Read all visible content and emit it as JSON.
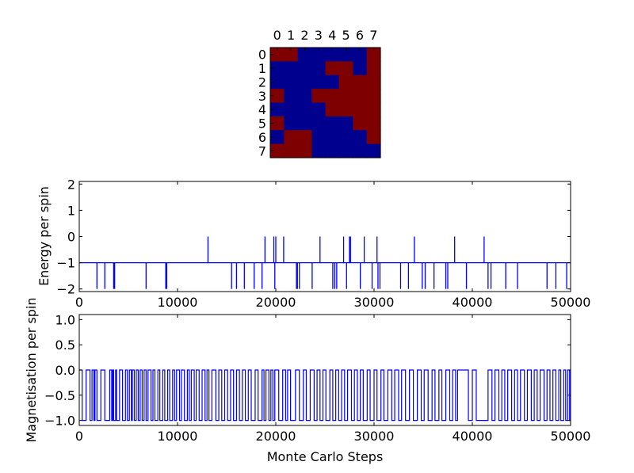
{
  "chart_data": [
    {
      "type": "heatmap",
      "title": "",
      "xticks": [
        "0",
        "1",
        "2",
        "3",
        "4",
        "5",
        "6",
        "7"
      ],
      "yticks": [
        "0",
        "1",
        "2",
        "3",
        "4",
        "5",
        "6",
        "7"
      ],
      "colors": {
        "up": "#7f0000",
        "down": "#00008f"
      },
      "grid": [
        [
          1,
          1,
          0,
          0,
          0,
          0,
          0,
          1
        ],
        [
          0,
          0,
          0,
          0,
          1,
          1,
          0,
          1
        ],
        [
          0,
          0,
          0,
          0,
          0,
          1,
          1,
          1
        ],
        [
          1,
          0,
          0,
          1,
          1,
          1,
          1,
          1
        ],
        [
          0,
          0,
          0,
          0,
          1,
          1,
          1,
          1
        ],
        [
          1,
          0,
          0,
          0,
          0,
          0,
          1,
          1
        ],
        [
          0,
          1,
          1,
          0,
          0,
          0,
          0,
          1
        ],
        [
          1,
          1,
          1,
          0,
          0,
          0,
          0,
          0
        ]
      ]
    },
    {
      "type": "line",
      "xlabel": "",
      "ylabel": "Energy per spin",
      "xlim": [
        0,
        50000
      ],
      "ylim": [
        -2.1,
        2.1
      ],
      "yticks": [
        -2,
        -1,
        0,
        1,
        2
      ],
      "xticks": [
        0,
        10000,
        20000,
        30000,
        40000,
        50000
      ],
      "baseline": -1,
      "color": "#0000ff",
      "series": [
        {
          "name": "energy-up-spikes",
          "value": 0,
          "x": [
            13100,
            18900,
            19800,
            20000,
            20800,
            24500,
            26900,
            27500,
            27600,
            29000,
            30300,
            34100,
            38200,
            41200
          ]
        },
        {
          "name": "energy-down-spikes",
          "value": -2,
          "x": [
            1800,
            2600,
            3500,
            3600,
            6800,
            8800,
            8900,
            15500,
            16000,
            16800,
            17800,
            18600,
            19900,
            22100,
            22200,
            22400,
            23700,
            25800,
            26000,
            26200,
            27200,
            28600,
            29800,
            30400,
            30600,
            32700,
            33500,
            34900,
            35200,
            36100,
            37300,
            37500,
            39400,
            41600,
            41900,
            43400,
            44600,
            47600,
            48500,
            49600
          ]
        }
      ]
    },
    {
      "type": "line",
      "xlabel": "Monte Carlo Steps",
      "ylabel": "Magnetisation per spin",
      "xlim": [
        0,
        50000
      ],
      "ylim": [
        -1.1,
        1.1
      ],
      "yticks": [
        -1.0,
        -0.5,
        0.0,
        0.5,
        1.0
      ],
      "ytick_labels": [
        "−1.0",
        "−0.5",
        "0.0",
        "0.5",
        "1.0"
      ],
      "xticks": [
        0,
        10000,
        20000,
        30000,
        40000,
        50000
      ],
      "color": "#0000ff",
      "series": [
        {
          "name": "magnetisation",
          "levels": [
            0.0,
            -1.0
          ],
          "switch_x": [
            300,
            700,
            1100,
            1300,
            1500,
            1600,
            1800,
            2200,
            2600,
            3100,
            3300,
            3400,
            3500,
            3700,
            3800,
            4100,
            4400,
            4700,
            4900,
            5100,
            5300,
            5400,
            5600,
            5800,
            6000,
            6200,
            6400,
            6600,
            6800,
            7000,
            7300,
            7500,
            7700,
            8000,
            8200,
            8500,
            8700,
            9000,
            9200,
            9500,
            9700,
            9900,
            10200,
            10400,
            10700,
            11000,
            11200,
            11400,
            11700,
            11900,
            12200,
            12500,
            12800,
            13000,
            13200,
            13500,
            13900,
            14200,
            14500,
            14800,
            15100,
            15400,
            15700,
            16000,
            16300,
            16600,
            16900,
            17200,
            17500,
            17900,
            18200,
            18600,
            18800,
            19000,
            19300,
            19500,
            19700,
            19900,
            20300,
            20700,
            21000,
            21200,
            21500,
            22000,
            22400,
            22800,
            23100,
            23500,
            23900,
            24200,
            24500,
            24800,
            25100,
            25500,
            25800,
            26100,
            26400,
            26700,
            27000,
            27300,
            27700,
            28000,
            28300,
            28600,
            28900,
            29300,
            29600,
            30000,
            30300,
            30700,
            31000,
            31400,
            31800,
            32100,
            32500,
            32800,
            33200,
            33600,
            34000,
            34400,
            34800,
            35100,
            35500,
            35900,
            36200,
            36600,
            36900,
            37300,
            37700,
            38000,
            38300,
            38500,
            39600,
            40000,
            40400,
            41600,
            42000,
            42300,
            42700,
            43000,
            43300,
            43600,
            44000,
            44300,
            44600,
            44900,
            45300,
            45600,
            46000,
            46300,
            46600,
            46900,
            47300,
            47600,
            47900,
            48200,
            48500,
            48800,
            49000,
            49300,
            49500,
            49700,
            49900
          ]
        }
      ]
    }
  ]
}
